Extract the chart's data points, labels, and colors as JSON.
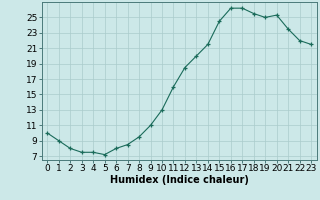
{
  "x": [
    0,
    1,
    2,
    3,
    4,
    5,
    6,
    7,
    8,
    9,
    10,
    11,
    12,
    13,
    14,
    15,
    16,
    17,
    18,
    19,
    20,
    21,
    22,
    23
  ],
  "y": [
    10,
    9,
    8,
    7.5,
    7.5,
    7.2,
    8.0,
    8.5,
    9.5,
    11,
    13,
    16,
    18.5,
    20,
    21.5,
    24.5,
    26.2,
    26.2,
    25.5,
    25.0,
    25.3,
    23.5,
    22.0,
    21.5
  ],
  "line_color": "#1a6b5a",
  "marker_color": "#1a6b5a",
  "bg_color": "#cce8e8",
  "grid_color": "#aacccc",
  "xlabel": "Humidex (Indice chaleur)",
  "yticks": [
    7,
    9,
    11,
    13,
    15,
    17,
    19,
    21,
    23,
    25
  ],
  "xticks": [
    0,
    1,
    2,
    3,
    4,
    5,
    6,
    7,
    8,
    9,
    10,
    11,
    12,
    13,
    14,
    15,
    16,
    17,
    18,
    19,
    20,
    21,
    22,
    23
  ],
  "xlim": [
    -0.5,
    23.5
  ],
  "ylim": [
    6.5,
    27.0
  ],
  "xlabel_fontsize": 7,
  "tick_fontsize": 6.5
}
